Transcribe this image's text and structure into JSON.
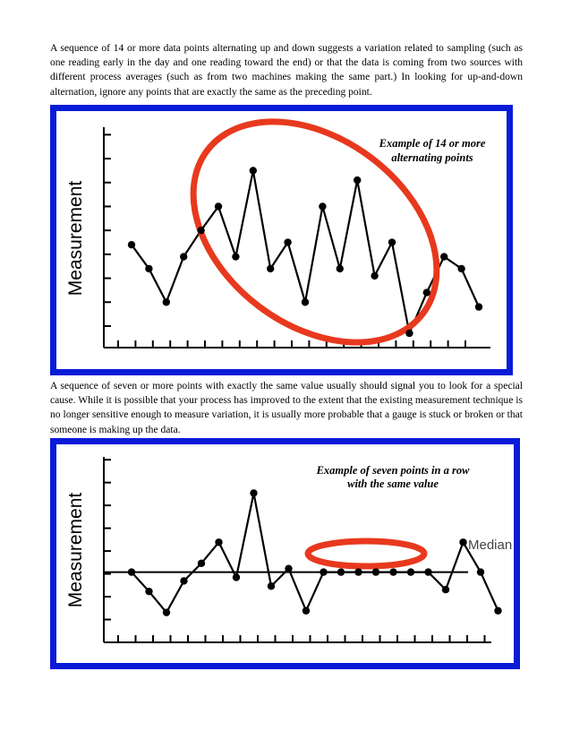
{
  "paragraphs": {
    "p1": "A sequence of 14 or more data points alternating up and down suggests a variation related to sampling (such as one reading early in the day and one reading toward the end) or that the data is coming from two sources with different process averages (such as from two machines making the same part.) In looking for up-and-down alternation, ignore any points that are exactly the same as the preceding point.",
    "p2": "A sequence of seven or more points with exactly the same value usually should signal you to look for a special cause. While it is possible that your process has improved to the extent that the existing measurement technique is no longer sensitive enough to measure variation, it is usually more probable that a gauge is stuck or broken or that someone is making up the data."
  },
  "figure1": {
    "ylabel": "Measurement",
    "annotation": [
      "Example of 14 or more",
      "alternating points"
    ],
    "highlight_color": "#e8391e",
    "frame_color": "#0a1bd8"
  },
  "figure2": {
    "ylabel": "Measurement",
    "annotation": [
      "Example of seven points in a row",
      "with the same value"
    ],
    "median_label": "Median",
    "highlight_color": "#e8391e",
    "frame_color": "#0a1bd8"
  },
  "chart_data": [
    {
      "type": "line",
      "ylabel": "Measurement",
      "xlabel": "",
      "x": [
        1,
        2,
        3,
        4,
        5,
        6,
        7,
        8,
        9,
        10,
        11,
        12,
        13,
        14,
        15,
        16,
        17,
        18,
        19,
        20,
        21
      ],
      "values": [
        4.3,
        3.3,
        1.9,
        3.8,
        4.9,
        5.9,
        3.8,
        7.4,
        3.3,
        4.4,
        1.9,
        5.9,
        3.3,
        7.0,
        3.0,
        4.4,
        0.6,
        2.3,
        3.8,
        3.3,
        1.7
      ],
      "annotation": "Example of 14 or more alternating points",
      "grid": false
    },
    {
      "type": "line",
      "ylabel": "Measurement",
      "xlabel": "",
      "x": [
        1,
        2,
        3,
        4,
        5,
        6,
        7,
        8,
        9,
        10,
        11,
        12,
        13,
        14,
        15,
        16,
        17,
        18,
        19,
        20,
        21,
        22
      ],
      "values": [
        4.0,
        2.9,
        1.7,
        3.5,
        4.5,
        5.7,
        3.7,
        8.5,
        3.2,
        4.2,
        1.8,
        4.0,
        4.0,
        4.0,
        4.0,
        4.0,
        4.0,
        4.0,
        3.0,
        5.7,
        4.0,
        1.8
      ],
      "reference_line": {
        "label": "Median",
        "value": 4.0
      },
      "annotation": "Example of seven points in a row with the same value",
      "grid": false
    }
  ]
}
